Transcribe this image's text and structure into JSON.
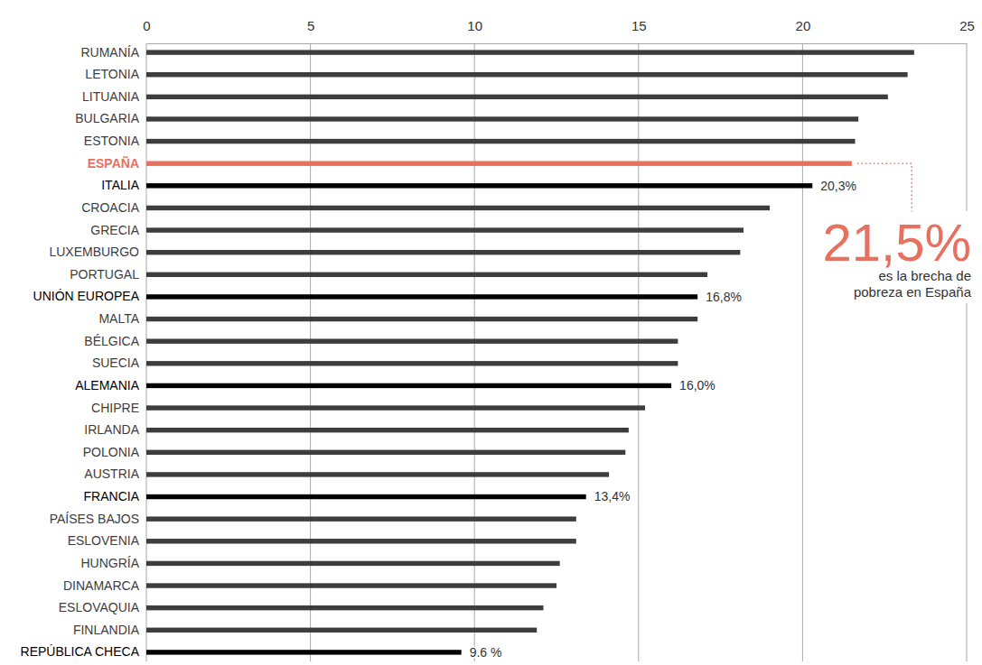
{
  "chart_data": {
    "type": "bar",
    "orientation": "horizontal",
    "categories": [
      "RUMANÍA",
      "LETONIA",
      "LITUANIA",
      "BULGARIA",
      "ESTONIA",
      "ESPAÑA",
      "ITALIA",
      "CROACIA",
      "GRECIA",
      "LUXEMBURGO",
      "PORTUGAL",
      "UNIÓN EUROPEA",
      "MALTA",
      "BÉLGICA",
      "SUECIA",
      "ALEMANIA",
      "CHIPRE",
      "IRLANDA",
      "POLONIA",
      "AUSTRIA",
      "FRANCIA",
      "PAÍSES BAJOS",
      "ESLOVENIA",
      "HUNGRÍA",
      "DINAMARCA",
      "ESLOVAQUIA",
      "FINLANDIA",
      "REPÚBLICA CHECA"
    ],
    "values": [
      23.4,
      23.2,
      22.6,
      21.7,
      21.6,
      21.5,
      20.3,
      19.0,
      18.2,
      18.1,
      17.1,
      16.8,
      16.8,
      16.2,
      16.2,
      16.0,
      15.2,
      14.7,
      14.6,
      14.1,
      13.4,
      13.1,
      13.1,
      12.6,
      12.5,
      12.1,
      11.9,
      9.6
    ],
    "value_labels": [
      null,
      null,
      null,
      null,
      null,
      null,
      "20,3%",
      null,
      null,
      null,
      null,
      "16,8%",
      null,
      null,
      null,
      "16,0%",
      null,
      null,
      null,
      null,
      "13,4%",
      null,
      null,
      null,
      null,
      null,
      null,
      "9.6 %"
    ],
    "colors": [
      "#3d3d3d",
      "#3d3d3d",
      "#3d3d3d",
      "#3d3d3d",
      "#3d3d3d",
      "#e8705f",
      "#000000",
      "#3d3d3d",
      "#3d3d3d",
      "#3d3d3d",
      "#3d3d3d",
      "#000000",
      "#3d3d3d",
      "#3d3d3d",
      "#3d3d3d",
      "#000000",
      "#3d3d3d",
      "#3d3d3d",
      "#3d3d3d",
      "#3d3d3d",
      "#000000",
      "#3d3d3d",
      "#3d3d3d",
      "#3d3d3d",
      "#3d3d3d",
      "#3d3d3d",
      "#3d3d3d",
      "#000000"
    ],
    "xlim": [
      0,
      25
    ],
    "xticks": [
      0,
      5,
      10,
      15,
      20,
      25
    ],
    "grid": true,
    "data_labels": true,
    "annotation": {
      "category": "ESPAÑA",
      "text": "21,5%",
      "caption": "es la brecha de pobreza en España"
    }
  }
}
